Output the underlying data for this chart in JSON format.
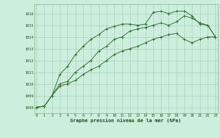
{
  "title": "Graphe pression niveau de la mer (hPa)",
  "bg_color": "#cceedd",
  "grid_color": "#aaccbb",
  "line_color": "#2d6e2d",
  "x_ticks": [
    0,
    1,
    2,
    3,
    4,
    5,
    6,
    7,
    8,
    9,
    10,
    11,
    12,
    13,
    14,
    15,
    16,
    17,
    18,
    19,
    20,
    21,
    22,
    23
  ],
  "y_ticks": [
    1008,
    1009,
    1010,
    1011,
    1012,
    1013,
    1014,
    1015,
    1016
  ],
  "ylim": [
    1007.5,
    1016.8
  ],
  "xlim": [
    -0.3,
    23.3
  ],
  "line1": [
    1008.0,
    1008.1,
    1009.0,
    1009.8,
    1010.0,
    1010.3,
    1010.8,
    1011.2,
    1011.5,
    1012.0,
    1012.5,
    1012.8,
    1013.0,
    1013.2,
    1013.5,
    1013.8,
    1014.0,
    1014.2,
    1014.3,
    1013.8,
    1013.5,
    1013.8,
    1014.0,
    1014.0
  ],
  "line2": [
    1008.0,
    1008.1,
    1009.0,
    1010.0,
    1010.2,
    1011.0,
    1011.5,
    1012.0,
    1012.8,
    1013.2,
    1013.8,
    1014.0,
    1014.5,
    1014.7,
    1014.8,
    1015.0,
    1015.2,
    1015.0,
    1015.3,
    1015.8,
    1015.6,
    1015.2,
    1015.0,
    1014.0
  ],
  "line3": [
    1008.0,
    1008.1,
    1009.0,
    1010.8,
    1011.5,
    1012.5,
    1013.2,
    1013.8,
    1014.2,
    1014.7,
    1014.9,
    1015.1,
    1015.1,
    1015.0,
    1015.1,
    1016.1,
    1016.2,
    1016.0,
    1016.2,
    1016.2,
    1015.8,
    1015.1,
    1015.0,
    1014.0
  ]
}
